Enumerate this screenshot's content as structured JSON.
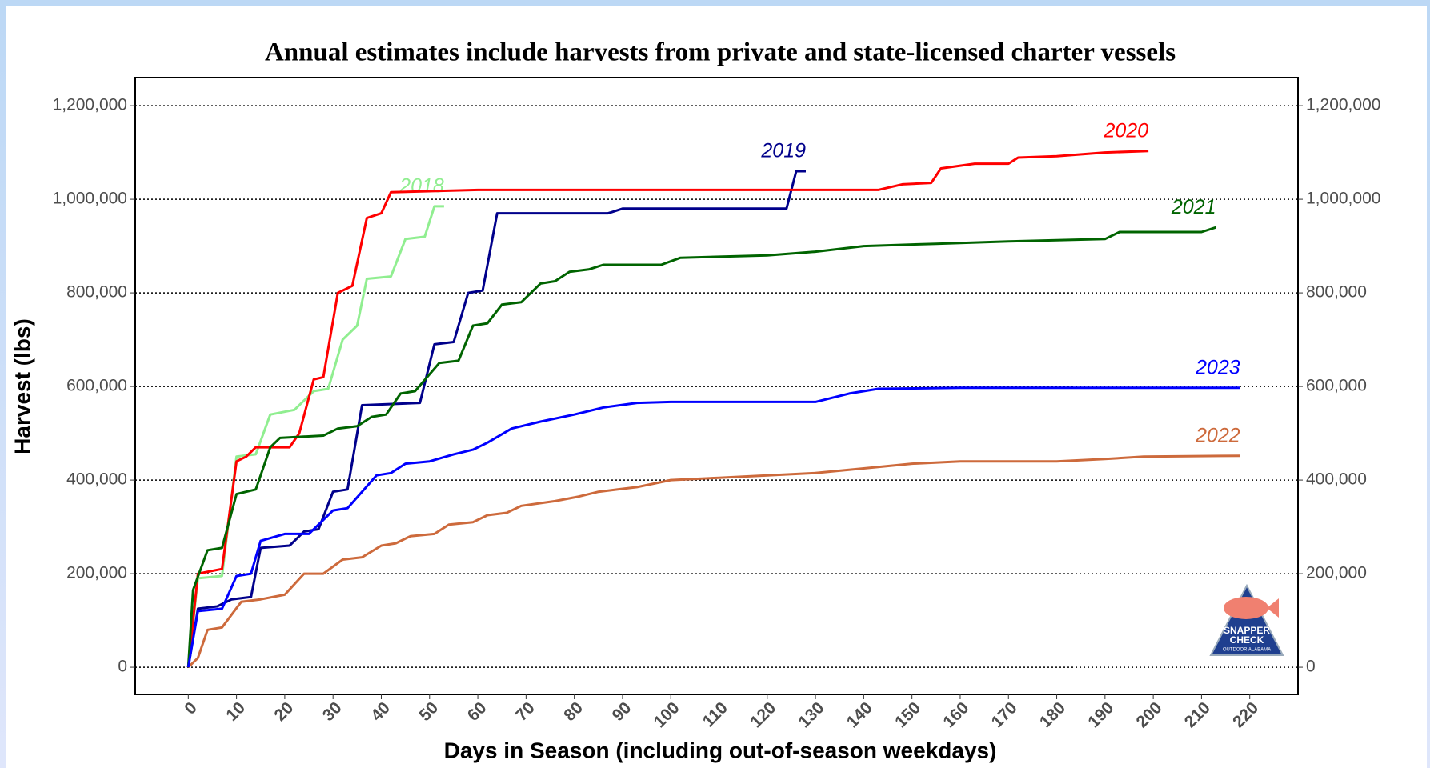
{
  "chart_data": {
    "type": "line",
    "title": "Annual estimates include harvests from private and state-licensed charter vessels",
    "x_label": "Days in Season (including out-of-season weekdays)",
    "y_label": "Harvest (lbs)",
    "xlim": [
      -11,
      230
    ],
    "xticks": [
      0,
      10,
      20,
      30,
      40,
      50,
      60,
      70,
      80,
      90,
      100,
      110,
      120,
      130,
      140,
      150,
      160,
      170,
      180,
      190,
      200,
      210,
      220
    ],
    "ylim": [
      -58000,
      1260000
    ],
    "yticks": [
      0,
      {
        "value": 200000,
        "label": "200,000"
      },
      {
        "value": 400000,
        "label": "400,000"
      },
      {
        "value": 600000,
        "label": "600,000"
      },
      {
        "value": 800000,
        "label": "800,000"
      },
      {
        "value": 1000000,
        "label": "1,000,000"
      },
      {
        "value": 1200000,
        "label": "1,200,000"
      }
    ],
    "y2lim": [
      -58000,
      1260000
    ],
    "y2ticks": [
      0,
      {
        "value": 200000,
        "label": "200,000"
      },
      {
        "value": 400000,
        "label": "400,000"
      },
      {
        "value": 600000,
        "label": "600,000"
      },
      {
        "value": 800000,
        "label": "800,000"
      },
      {
        "value": 1000000,
        "label": "1,000,000"
      },
      {
        "value": 1200000,
        "label": "1,200,000"
      }
    ],
    "grid": true,
    "series": [
      {
        "name": "2018",
        "color": "#90ee90",
        "x": [
          0,
          2,
          7,
          10,
          14,
          17,
          22,
          26,
          29,
          32,
          35,
          37,
          42,
          45,
          49,
          51,
          53
        ],
        "values": [
          0,
          190000,
          195000,
          450000,
          455000,
          540000,
          550000,
          590000,
          595000,
          700000,
          730000,
          830000,
          835000,
          915000,
          920000,
          985000,
          985000
        ]
      },
      {
        "name": "2019",
        "color": "#00008b",
        "x": [
          0,
          2,
          6,
          9,
          13,
          15,
          21,
          24,
          27,
          30,
          33,
          36,
          48,
          51,
          55,
          58,
          61,
          64,
          87,
          90,
          124,
          126,
          128
        ],
        "values": [
          0,
          125000,
          130000,
          145000,
          150000,
          255000,
          260000,
          290000,
          295000,
          375000,
          380000,
          560000,
          565000,
          690000,
          695000,
          800000,
          805000,
          970000,
          970000,
          980000,
          980000,
          1060000,
          1060000
        ]
      },
      {
        "name": "2020",
        "color": "#ff0000",
        "x": [
          0,
          2,
          7,
          10,
          12,
          14,
          21,
          23,
          26,
          28,
          31,
          34,
          37,
          40,
          42,
          60,
          143,
          148,
          154,
          156,
          163,
          170,
          172,
          180,
          190,
          199
        ],
        "values": [
          0,
          200000,
          210000,
          440000,
          450000,
          470000,
          470000,
          500000,
          615000,
          620000,
          800000,
          815000,
          960000,
          970000,
          1015000,
          1020000,
          1020000,
          1032000,
          1035000,
          1066000,
          1076000,
          1076000,
          1089000,
          1092000,
          1100000,
          1103000
        ]
      },
      {
        "name": "2021",
        "color": "#006400",
        "x": [
          0,
          1,
          4,
          7,
          10,
          14,
          17,
          19,
          28,
          31,
          35,
          38,
          41,
          44,
          47,
          52,
          56,
          59,
          62,
          65,
          69,
          73,
          76,
          79,
          83,
          86,
          98,
          102,
          120,
          130,
          140,
          155,
          170,
          190,
          193,
          210,
          213
        ],
        "values": [
          0,
          165000,
          250000,
          255000,
          370000,
          380000,
          470000,
          490000,
          495000,
          510000,
          515000,
          535000,
          540000,
          585000,
          590000,
          650000,
          655000,
          730000,
          735000,
          775000,
          780000,
          820000,
          825000,
          845000,
          850000,
          860000,
          860000,
          875000,
          880000,
          888000,
          900000,
          905000,
          910000,
          915000,
          930000,
          930000,
          940000
        ]
      },
      {
        "name": "2022",
        "color": "#cd6a3c",
        "x": [
          0,
          2,
          4,
          7,
          11,
          15,
          20,
          24,
          28,
          32,
          36,
          40,
          43,
          46,
          51,
          54,
          59,
          62,
          66,
          69,
          76,
          81,
          85,
          89,
          93,
          100,
          110,
          120,
          130,
          140,
          150,
          160,
          180,
          190,
          198,
          218
        ],
        "values": [
          0,
          20000,
          80000,
          85000,
          140000,
          145000,
          155000,
          200000,
          200000,
          230000,
          235000,
          260000,
          265000,
          280000,
          285000,
          305000,
          310000,
          325000,
          330000,
          345000,
          355000,
          365000,
          375000,
          380000,
          385000,
          400000,
          405000,
          410000,
          415000,
          425000,
          435000,
          440000,
          440000,
          445000,
          450000,
          452000
        ]
      },
      {
        "name": "2023",
        "color": "#0000ff",
        "x": [
          0,
          2,
          7,
          10,
          13,
          15,
          20,
          25,
          30,
          33,
          39,
          42,
          45,
          50,
          55,
          59,
          62,
          67,
          73,
          80,
          86,
          93,
          100,
          130,
          137,
          143,
          160,
          218
        ],
        "values": [
          0,
          120000,
          125000,
          195000,
          200000,
          270000,
          285000,
          285000,
          335000,
          340000,
          410000,
          415000,
          435000,
          440000,
          455000,
          465000,
          480000,
          510000,
          525000,
          540000,
          555000,
          565000,
          567000,
          567000,
          585000,
          595000,
          597000,
          597000
        ]
      }
    ]
  },
  "logo": {
    "line1": "SNAPPER",
    "line2": "CHECK",
    "line3": "OUTDOOR ALABAMA"
  }
}
